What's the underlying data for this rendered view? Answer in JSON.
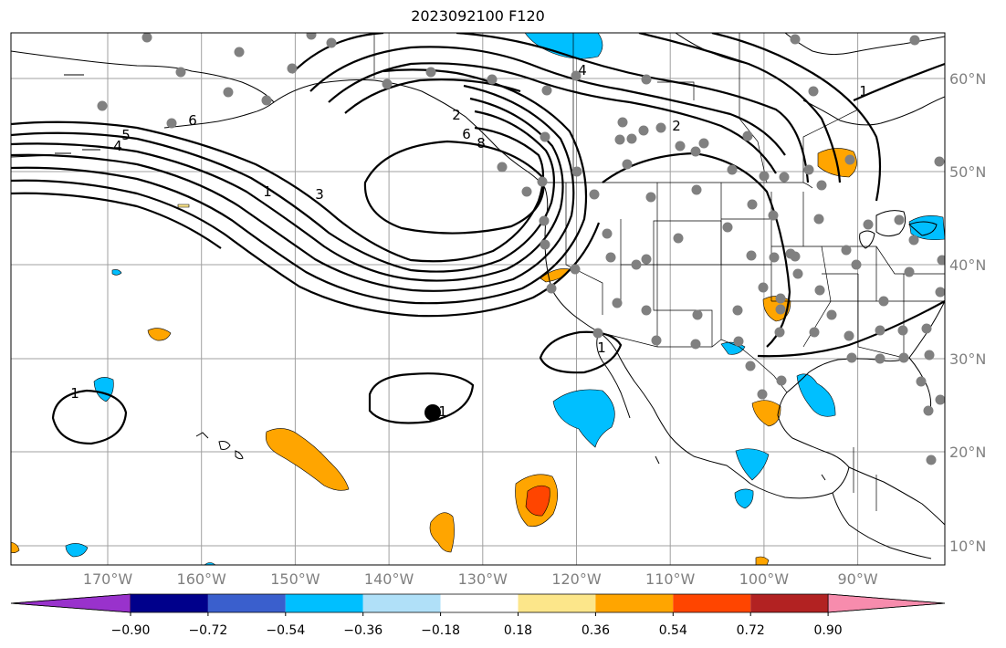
{
  "title": "2023092100 F120",
  "longitude_labels": [
    "170°W",
    "160°W",
    "150°W",
    "140°W",
    "130°W",
    "120°W",
    "110°W",
    "100°W",
    "90°W"
  ],
  "latitude_labels": [
    "10°N",
    "20°N",
    "30°N",
    "40°N",
    "50°N",
    "60°N"
  ],
  "colorbar": {
    "tick_labels": [
      "−0.90",
      "−0.72",
      "−0.54",
      "−0.36",
      "−0.18",
      "0.18",
      "0.36",
      "0.54",
      "0.72",
      "0.90"
    ],
    "colors": [
      "#9932cc",
      "#00008b",
      "#3a5fcd",
      "#00bfff",
      "#b0e0f8",
      "#ffffff",
      "#fce68a",
      "#ffa500",
      "#ff4500",
      "#b22222",
      "#f78cad"
    ]
  },
  "contour_labels": [
    "1",
    "3",
    "5",
    "6",
    "4",
    "2",
    "4",
    "6",
    "8",
    "2",
    "1",
    "1",
    "1",
    "1"
  ],
  "colors": {
    "station_marker": "#808080",
    "contour": "#000000",
    "grid": "#a0a0a0"
  }
}
